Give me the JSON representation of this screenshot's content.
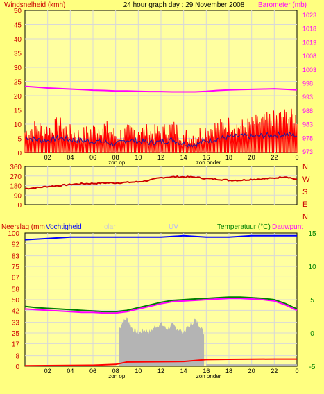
{
  "title": "24 hour graph day : 29 November 2008",
  "colors": {
    "background": "#ffff80",
    "plot_background": "#ffffa0",
    "grid": "#d8d8d8",
    "wind_gust": "#ff0000",
    "wind_avg": "#1a1aa0",
    "barometer": "#ff00ff",
    "direction": "#cc0000",
    "humidity": "#0000ff",
    "temperature": "#008000",
    "dewpoint": "#ff00ff",
    "rain": "#ff0000",
    "solar": "#b4b4b4",
    "uv_label": "#b4b4ff",
    "dark_text": "#000000"
  },
  "chart_data": [
    {
      "type": "line",
      "name": "wind-barometer",
      "title": "24 hour graph day : 29 November 2008",
      "ylabel": "Windsnelheid (kmh)",
      "ylabel_right": "Barometer (mb)",
      "x_ticks": [
        "02",
        "04",
        "06",
        "08",
        "10",
        "12",
        "14",
        "16",
        "18",
        "20",
        "22",
        "0"
      ],
      "x_annotations": [
        {
          "text": "zon op",
          "hour": 8.1
        },
        {
          "text": "zon onder",
          "hour": 16.2
        }
      ],
      "ylim": [
        0,
        50
      ],
      "yticks": [
        0,
        5,
        10,
        15,
        20,
        25,
        30,
        35,
        40,
        45,
        50
      ],
      "ylim_right": [
        972.5,
        1024.5
      ],
      "yticks_right": [
        973,
        978,
        983,
        988,
        993,
        998,
        1003,
        1008,
        1013,
        1018,
        1023
      ],
      "grid": true,
      "series": [
        {
          "name": "wind gust",
          "x": [
            0,
            1,
            2,
            3,
            4,
            5,
            6,
            7,
            8,
            9,
            10,
            11,
            12,
            13,
            14,
            15,
            16,
            17,
            18,
            19,
            20,
            21,
            22,
            23,
            24
          ],
          "values": [
            7,
            9,
            8,
            10,
            7,
            6,
            8,
            9,
            6,
            7,
            8,
            7,
            7,
            9,
            6,
            6,
            8,
            9,
            10,
            9,
            10,
            11,
            12,
            13,
            12
          ]
        },
        {
          "name": "wind average",
          "x": [
            0,
            1,
            2,
            3,
            4,
            5,
            6,
            7,
            8,
            9,
            10,
            11,
            12,
            13,
            14,
            15,
            16,
            17,
            18,
            19,
            20,
            21,
            22,
            23,
            24
          ],
          "values": [
            5.5,
            4.5,
            4.2,
            5.2,
            4.5,
            4.2,
            4.0,
            3.8,
            2.8,
            4.5,
            4.0,
            3.5,
            3.8,
            4.5,
            3.2,
            2.8,
            4.2,
            4.8,
            5.5,
            5.8,
            5.5,
            6.0,
            6.2,
            6.5,
            6.0
          ]
        },
        {
          "name": "barometer",
          "axis": "right",
          "x": [
            0,
            1,
            2,
            3,
            4,
            5,
            6,
            7,
            8,
            9,
            10,
            11,
            12,
            13,
            14,
            15,
            16,
            17,
            18,
            19,
            20,
            21,
            22,
            23,
            24
          ],
          "values": [
            996.7,
            996.4,
            996.1,
            995.9,
            995.7,
            995.5,
            995.3,
            995.2,
            995.0,
            995.0,
            994.9,
            994.8,
            994.8,
            994.7,
            994.7,
            994.7,
            994.9,
            995.2,
            995.4,
            995.5,
            995.6,
            995.7,
            995.8,
            995.6,
            995.4
          ]
        }
      ]
    },
    {
      "type": "line",
      "name": "wind-direction",
      "ylim": [
        0,
        360
      ],
      "yticks": [
        0,
        90,
        180,
        270,
        360
      ],
      "right_labels": [
        "N",
        "W",
        "S",
        "E",
        "N"
      ],
      "grid": true,
      "series": [
        {
          "name": "wind direction",
          "x": [
            0,
            1,
            2,
            3,
            4,
            5,
            6,
            7,
            8,
            9,
            10,
            11,
            12,
            13,
            14,
            15,
            16,
            17,
            18,
            19,
            20,
            21,
            22,
            23,
            24
          ],
          "values": [
            150,
            160,
            172,
            180,
            190,
            198,
            200,
            205,
            205,
            210,
            215,
            230,
            255,
            262,
            262,
            260,
            245,
            240,
            230,
            230,
            238,
            243,
            250,
            265,
            235
          ]
        }
      ]
    },
    {
      "type": "line",
      "name": "rain-humidity-temperature",
      "left_labels": [
        "Neerslag (mm",
        "Vochtigheid",
        "olar",
        "UV"
      ],
      "right_labels": [
        "Temperatuur (°C)",
        "Dauwpunt"
      ],
      "x_ticks": [
        "02",
        "04",
        "06",
        "08",
        "10",
        "12",
        "14",
        "16",
        "18",
        "20",
        "22",
        "0"
      ],
      "x_annotations": [
        {
          "text": "zon op",
          "hour": 8.1
        },
        {
          "text": "zon onder",
          "hour": 16.2
        }
      ],
      "ylim": [
        0,
        100
      ],
      "yticks": [
        0,
        10,
        20,
        30,
        40,
        50,
        60,
        70,
        80,
        90,
        100
      ],
      "left_tick_labels": [
        "0",
        "8",
        "17",
        "25",
        "33",
        "42",
        "50",
        "58",
        "67",
        "75",
        "83",
        "92",
        "100"
      ],
      "ylim_right": [
        -5,
        15
      ],
      "yticks_right": [
        -5,
        -2.5,
        0,
        2.5,
        5,
        7.5,
        10,
        12.5,
        15
      ],
      "right_tick_labels": [
        "-5",
        "",
        "0",
        "",
        "5",
        "",
        "10",
        "",
        "15"
      ],
      "left_tick_values": [
        0,
        8,
        17,
        25,
        33,
        42,
        50,
        58,
        67,
        75,
        83,
        92,
        100
      ],
      "right_tick_values": [
        -5,
        -2.5,
        0,
        2.5,
        5,
        7.5,
        10,
        12.5,
        15
      ],
      "grid": true,
      "series": [
        {
          "name": "Vochtigheid",
          "x": [
            0,
            2,
            4,
            6,
            8,
            10,
            12,
            14,
            16,
            18,
            20,
            22,
            24
          ],
          "values": [
            95,
            96,
            97,
            97,
            97,
            97,
            97,
            98,
            97,
            97,
            98,
            98,
            98
          ]
        },
        {
          "name": "Temperatuur",
          "axis": "right",
          "x": [
            0,
            1,
            2,
            3,
            4,
            5,
            6,
            7,
            8,
            9,
            10,
            11,
            12,
            13,
            14,
            15,
            16,
            17,
            18,
            19,
            20,
            21,
            22,
            23,
            24
          ],
          "values": [
            4.0,
            3.8,
            3.7,
            3.6,
            3.5,
            3.4,
            3.3,
            3.2,
            3.2,
            3.4,
            3.8,
            4.2,
            4.6,
            4.9,
            5.0,
            5.1,
            5.2,
            5.3,
            5.4,
            5.4,
            5.3,
            5.2,
            5.0,
            4.4,
            3.6
          ]
        },
        {
          "name": "Dauwpunt",
          "axis": "right",
          "x": [
            0,
            1,
            2,
            3,
            4,
            5,
            6,
            7,
            8,
            9,
            10,
            11,
            12,
            13,
            14,
            15,
            16,
            17,
            18,
            19,
            20,
            21,
            22,
            23,
            24
          ],
          "values": [
            3.6,
            3.5,
            3.4,
            3.3,
            3.2,
            3.1,
            3.1,
            3.0,
            3.0,
            3.2,
            3.6,
            4.0,
            4.4,
            4.7,
            4.8,
            4.9,
            5.0,
            5.1,
            5.2,
            5.2,
            5.1,
            5.0,
            4.8,
            4.2,
            3.4
          ]
        },
        {
          "name": "Neerslag",
          "x": [
            0,
            6,
            8,
            9,
            14,
            16,
            18,
            22,
            24
          ],
          "values": [
            0.4,
            0.8,
            1.4,
            3.2,
            3.6,
            5.0,
            5.2,
            5.4,
            5.4
          ]
        },
        {
          "name": "Solar",
          "type": "area",
          "x": [
            8.3,
            8.6,
            9.0,
            9.5,
            10.0,
            10.5,
            11.0,
            11.5,
            12.0,
            12.5,
            13.0,
            13.5,
            14.0,
            14.5,
            15.0,
            15.5,
            15.8
          ],
          "values": [
            28,
            33,
            36,
            28,
            25,
            27,
            26,
            30,
            32,
            28,
            31,
            28,
            26,
            30,
            35,
            30,
            24
          ]
        }
      ]
    }
  ]
}
